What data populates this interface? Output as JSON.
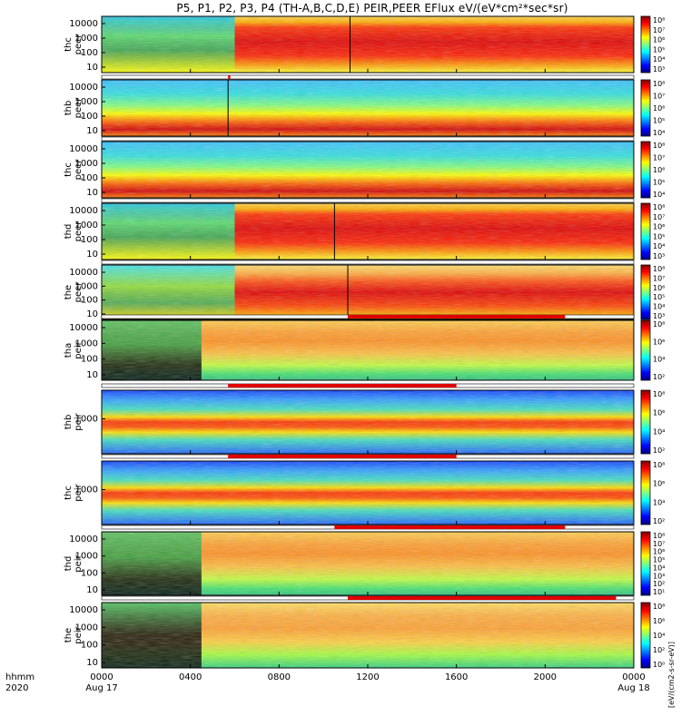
{
  "chart_data": {
    "type": "heatmap",
    "title": "P5, P1, P2, P3, P4 (TH-A,B,C,D,E) PEIR,PEER EFlux eV/(eV*cm²*sec*sr)",
    "x_axis": {
      "corner_label_1": "hhmm",
      "corner_label_2": "2020",
      "ticks": [
        {
          "t": 0,
          "label": "0000",
          "sublabel": "Aug 17"
        },
        {
          "t": 4,
          "label": "0400",
          "sublabel": ""
        },
        {
          "t": 8,
          "label": "0800",
          "sublabel": ""
        },
        {
          "t": 12,
          "label": "1200",
          "sublabel": ""
        },
        {
          "t": 16,
          "label": "1600",
          "sublabel": ""
        },
        {
          "t": 20,
          "label": "2000",
          "sublabel": ""
        },
        {
          "t": 24,
          "label": "0000",
          "sublabel": "Aug 18"
        }
      ],
      "range_hours": [
        0,
        24
      ]
    },
    "colorbar_label": "[eV/(cm2-s-sr-eV)]",
    "panels": [
      {
        "probe": "thc",
        "species": "peer",
        "label_1": "thc",
        "label_2": "peer",
        "y_ticks": [
          "10000",
          "1000",
          "100",
          "10"
        ],
        "cb_ticks": [
          "10⁸",
          "10⁷",
          "10⁶",
          "10⁵",
          "10⁴",
          "10³"
        ],
        "mode": "electron_active",
        "event_t": 11.2,
        "strip": null
      },
      {
        "probe": "thb",
        "species": "peer",
        "label_1": "thb",
        "label_2": "peer",
        "y_ticks": [
          "10000",
          "1000",
          "100",
          "10"
        ],
        "cb_ticks": [
          "10⁸",
          "10⁷",
          "10⁶",
          "10⁵",
          "10⁴"
        ],
        "mode": "electron_solarwind",
        "event_t": 5.7,
        "strip": {
          "segments": [
            [
              5.7,
              5.8
            ]
          ]
        }
      },
      {
        "probe": "thc",
        "species": "peer",
        "label_1": "thc",
        "label_2": "peer",
        "y_ticks": [
          "10000",
          "1000",
          "100",
          "10"
        ],
        "cb_ticks": [
          "10⁸",
          "10⁷",
          "10⁶",
          "10⁵",
          "10⁴"
        ],
        "mode": "electron_solarwind",
        "event_t": null,
        "strip": {
          "segments": []
        }
      },
      {
        "probe": "thd",
        "species": "peer",
        "label_1": "thd",
        "label_2": "peer",
        "y_ticks": [
          "10000",
          "1000",
          "100",
          "10"
        ],
        "cb_ticks": [
          "10⁸",
          "10⁷",
          "10⁶",
          "10⁵",
          "10⁴",
          "10³"
        ],
        "mode": "electron_active",
        "event_t": 10.5,
        "strip": {
          "segments": []
        }
      },
      {
        "probe": "the",
        "species": "peer",
        "label_1": "the",
        "label_2": "peer",
        "y_ticks": [
          "10000",
          "1000",
          "100",
          "10"
        ],
        "cb_ticks": [
          "10⁸",
          "10⁷",
          "10⁶",
          "10⁵",
          "10⁴",
          "10³"
        ],
        "mode": "electron_active2",
        "event_t": 11.1,
        "strip": {
          "segments": []
        }
      },
      {
        "probe": "tha",
        "species": "peir",
        "label_1": "tha",
        "label_2": "peir",
        "y_ticks": [
          "10000",
          "1000",
          "100",
          "10"
        ],
        "cb_ticks": [
          "10⁸",
          "10⁶",
          "10⁴",
          "10²"
        ],
        "mode": "ion_sheet",
        "event_t": null,
        "strip": {
          "segments": [
            [
              11.1,
              20.9
            ]
          ]
        }
      },
      {
        "probe": "thb",
        "species": "peir",
        "label_1": "thb",
        "label_2": "peir",
        "y_ticks": [
          "1000"
        ],
        "cb_ticks": [
          "10⁸",
          "10⁶",
          "10⁴",
          "10²"
        ],
        "mode": "ion_solarwind",
        "event_t": null,
        "strip": {
          "segments": [
            [
              5.7,
              16.0
            ]
          ]
        }
      },
      {
        "probe": "thc",
        "species": "peir",
        "label_1": "thc",
        "label_2": "peir",
        "y_ticks": [
          "1000"
        ],
        "cb_ticks": [
          "10⁸",
          "10⁶",
          "10⁴",
          "10²"
        ],
        "mode": "ion_solarwind",
        "event_t": null,
        "strip": {
          "segments": [
            [
              5.7,
              16.0
            ]
          ]
        }
      },
      {
        "probe": "thd",
        "species": "peir",
        "label_1": "thd",
        "label_2": "peir",
        "y_ticks": [
          "10000",
          "1000",
          "100",
          "10"
        ],
        "cb_ticks": [
          "10⁸",
          "10⁷",
          "10⁶",
          "10⁵",
          "10⁴",
          "10³",
          "10²",
          "10¹"
        ],
        "mode": "ion_sheet",
        "event_t": null,
        "strip": {
          "segments": [
            [
              10.5,
              20.9
            ]
          ]
        }
      },
      {
        "probe": "the",
        "species": "peir",
        "label_1": "the",
        "label_2": "peir",
        "y_ticks": [
          "10000",
          "1000",
          "100",
          "10"
        ],
        "cb_ticks": [
          "10⁸",
          "10⁶",
          "10⁴",
          "10²",
          "10⁰"
        ],
        "mode": "ion_sheet2",
        "event_t": null,
        "strip": {
          "segments": [
            [
              11.1,
              23.2
            ]
          ]
        }
      }
    ]
  }
}
